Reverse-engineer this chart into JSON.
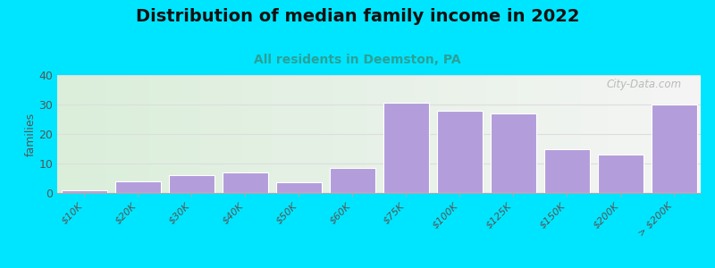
{
  "title": "Distribution of median family income in 2022",
  "subtitle": "All residents in Deemston, PA",
  "ylabel": "families",
  "categories": [
    "$10K",
    "$20K",
    "$30K",
    "$40K",
    "$50K",
    "$60K",
    "$75K",
    "$100K",
    "$125K",
    "$150K",
    "$200K",
    "> $200K"
  ],
  "values": [
    1,
    4,
    6,
    7,
    3.5,
    8.5,
    30.5,
    28,
    27,
    15,
    13,
    30
  ],
  "bar_color": "#b39ddb",
  "bar_edge_color": "#ffffff",
  "ylim": [
    0,
    40
  ],
  "yticks": [
    0,
    10,
    20,
    30,
    40
  ],
  "background_outer": "#00e5ff",
  "bg_left_color": "#daeeda",
  "bg_right_color": "#f5f5f5",
  "title_fontsize": 14,
  "subtitle_fontsize": 10,
  "subtitle_color": "#2aa198",
  "watermark": "City-Data.com",
  "grid_color": "#dddddd",
  "tick_label_color": "#555555",
  "ylabel_color": "#555555"
}
